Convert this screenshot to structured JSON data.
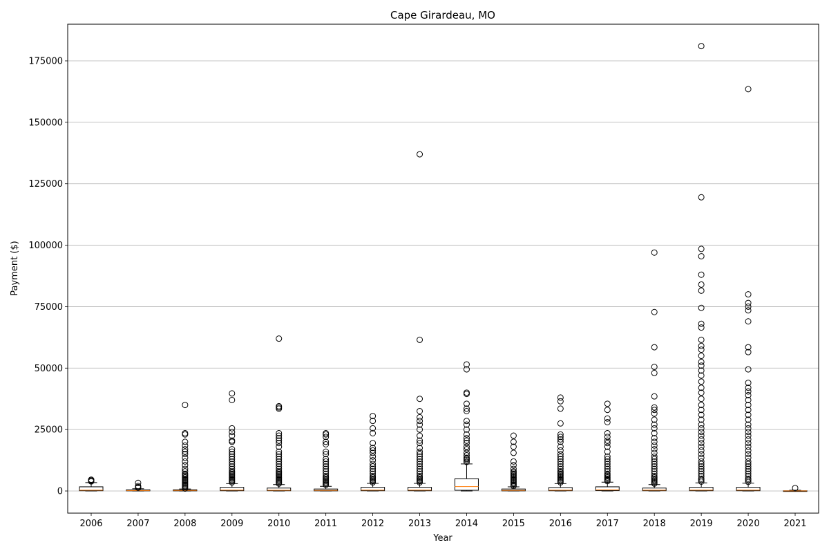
{
  "chart_data": {
    "type": "box",
    "title": "Cape Girardeau, MO",
    "xlabel": "Year",
    "ylabel": "Payment ($)",
    "ylim": [
      -9000,
      190000
    ],
    "grid": "y",
    "y_ticks": [
      0,
      25000,
      50000,
      75000,
      100000,
      125000,
      150000,
      175000
    ],
    "y_tick_labels": [
      "0",
      "25000",
      "50000",
      "75000",
      "100000",
      "125000",
      "150000",
      "175000"
    ],
    "categories": [
      "2006",
      "2007",
      "2008",
      "2009",
      "2010",
      "2011",
      "2012",
      "2013",
      "2014",
      "2015",
      "2016",
      "2017",
      "2018",
      "2019",
      "2020",
      "2021"
    ],
    "boxes": [
      {
        "q1": 100,
        "median": 350,
        "q3": 1700,
        "whisker_low": 0,
        "whisker_high": 3400,
        "outliers": [
          3900,
          4200,
          4500,
          4600
        ]
      },
      {
        "q1": 50,
        "median": 150,
        "q3": 500,
        "whisker_low": 0,
        "whisker_high": 900,
        "outliers": [
          1300,
          1600,
          2000,
          3300
        ]
      },
      {
        "q1": 50,
        "median": 200,
        "q3": 500,
        "whisker_low": 0,
        "whisker_high": 800,
        "outliers": [
          1000,
          1500,
          2000,
          2500,
          3000,
          3500,
          4000,
          4500,
          5000,
          5500,
          6000,
          6500,
          7000,
          8000,
          9000,
          10500,
          12000,
          13500,
          15000,
          16000,
          17000,
          18500,
          20000,
          23000,
          23500,
          35000
        ]
      },
      {
        "q1": 100,
        "median": 400,
        "q3": 1500,
        "whisker_low": 0,
        "whisker_high": 3000,
        "outliers": [
          3500,
          4000,
          4500,
          5000,
          5500,
          6000,
          6500,
          7000,
          7500,
          8000,
          9000,
          10000,
          11000,
          12000,
          13000,
          14000,
          15000,
          16000,
          17000,
          20000,
          20500,
          22500,
          24000,
          25500,
          37000,
          39700
        ]
      },
      {
        "q1": 100,
        "median": 300,
        "q3": 1200,
        "whisker_low": 0,
        "whisker_high": 2600,
        "outliers": [
          3000,
          3500,
          4000,
          4500,
          5000,
          5500,
          6000,
          6500,
          7000,
          7500,
          8000,
          9000,
          10000,
          11000,
          12000,
          13000,
          14000,
          15000,
          16000,
          18000,
          19500,
          20500,
          21500,
          22500,
          23500,
          33500,
          34000,
          34500,
          62000
        ]
      },
      {
        "q1": 50,
        "median": 250,
        "q3": 800,
        "whisker_low": 0,
        "whisker_high": 1900,
        "outliers": [
          2500,
          3000,
          3500,
          4000,
          4500,
          5000,
          5500,
          6000,
          7000,
          8000,
          9000,
          10000,
          11000,
          12000,
          13000,
          15000,
          16000,
          19000,
          20000,
          22000,
          23000,
          23500
        ]
      },
      {
        "q1": 100,
        "median": 400,
        "q3": 1500,
        "whisker_low": 0,
        "whisker_high": 3100,
        "outliers": [
          3500,
          4000,
          4500,
          5000,
          5500,
          6000,
          7000,
          8000,
          9000,
          10000,
          11000,
          12500,
          14000,
          15500,
          16500,
          17500,
          19500,
          23500,
          25500,
          28500,
          30500
        ]
      },
      {
        "q1": 100,
        "median": 400,
        "q3": 1500,
        "whisker_low": 0,
        "whisker_high": 3100,
        "outliers": [
          3500,
          4000,
          4500,
          5000,
          5500,
          6000,
          7000,
          8000,
          9000,
          10000,
          11000,
          12000,
          13000,
          14000,
          15000,
          16000,
          17500,
          19500,
          20500,
          22500,
          25000,
          27000,
          28500,
          30000,
          32500,
          37500,
          61500,
          137000
        ]
      },
      {
        "q1": 300,
        "median": 1800,
        "q3": 5000,
        "whisker_low": 0,
        "whisker_high": 11000,
        "outliers": [
          11800,
          12500,
          13000,
          13500,
          14500,
          15500,
          17000,
          18000,
          19500,
          20500,
          21500,
          23000,
          25000,
          27000,
          28500,
          32500,
          33500,
          35500,
          39500,
          40000,
          49500,
          51500
        ]
      },
      {
        "q1": 50,
        "median": 250,
        "q3": 800,
        "whisker_low": 0,
        "whisker_high": 1700,
        "outliers": [
          2000,
          2500,
          3000,
          3500,
          4000,
          4500,
          5000,
          5500,
          6000,
          6500,
          7000,
          7500,
          8000,
          9000,
          10500,
          12000,
          15500,
          18000,
          20000,
          22500
        ]
      },
      {
        "q1": 100,
        "median": 350,
        "q3": 1400,
        "whisker_low": 0,
        "whisker_high": 3000,
        "outliers": [
          3500,
          4000,
          4500,
          5000,
          5500,
          6000,
          6500,
          7000,
          7500,
          8000,
          9000,
          10000,
          11000,
          12000,
          13000,
          14000,
          15000,
          16500,
          18000,
          20000,
          21000,
          22000,
          23000,
          27500,
          33500,
          36500,
          38000
        ]
      },
      {
        "q1": 150,
        "median": 500,
        "q3": 1700,
        "whisker_low": 0,
        "whisker_high": 3600,
        "outliers": [
          4000,
          4500,
          5000,
          5500,
          6000,
          6500,
          7000,
          8000,
          9000,
          10000,
          11000,
          12000,
          13000,
          14000,
          16000,
          18000,
          19500,
          20500,
          22000,
          23500,
          28000,
          29500,
          33000,
          35500
        ]
      },
      {
        "q1": 100,
        "median": 350,
        "q3": 1200,
        "whisker_low": 0,
        "whisker_high": 2600,
        "outliers": [
          3000,
          3500,
          4000,
          4500,
          5000,
          5500,
          6000,
          7000,
          8000,
          9000,
          10000,
          11000,
          12000,
          13000,
          14000,
          15500,
          17000,
          18500,
          20000,
          21500,
          23500,
          25500,
          27000,
          29000,
          31500,
          33000,
          34000,
          38500,
          48000,
          50500,
          58500,
          72800,
          97000
        ]
      },
      {
        "q1": 100,
        "median": 400,
        "q3": 1500,
        "whisker_low": 0,
        "whisker_high": 3300,
        "outliers": [
          3800,
          4500,
          5000,
          6000,
          7000,
          8000,
          9000,
          10000,
          11000,
          12000,
          13500,
          15000,
          16500,
          18000,
          19500,
          21000,
          22500,
          24000,
          25500,
          27000,
          29000,
          31000,
          33000,
          35000,
          37500,
          40000,
          42000,
          44500,
          47000,
          49000,
          51000,
          52500,
          55000,
          57500,
          59000,
          61500,
          66500,
          68000,
          74500,
          81500,
          84000,
          88000,
          95500,
          98500,
          119500,
          181000
        ]
      },
      {
        "q1": 100,
        "median": 400,
        "q3": 1500,
        "whisker_low": 0,
        "whisker_high": 3200,
        "outliers": [
          3700,
          4500,
          5000,
          6000,
          7000,
          8000,
          9000,
          10000,
          11000,
          12000,
          13500,
          15000,
          16500,
          18000,
          19500,
          21000,
          22500,
          24000,
          25500,
          27000,
          29000,
          31000,
          33000,
          35000,
          37000,
          39000,
          40500,
          42000,
          44000,
          49500,
          56500,
          58500,
          69000,
          73500,
          75000,
          76500,
          80000,
          163500
        ]
      },
      {
        "q1": 0,
        "median": 20,
        "q3": 100,
        "whisker_low": 0,
        "whisker_high": 300,
        "outliers": [
          1200
        ]
      }
    ]
  }
}
